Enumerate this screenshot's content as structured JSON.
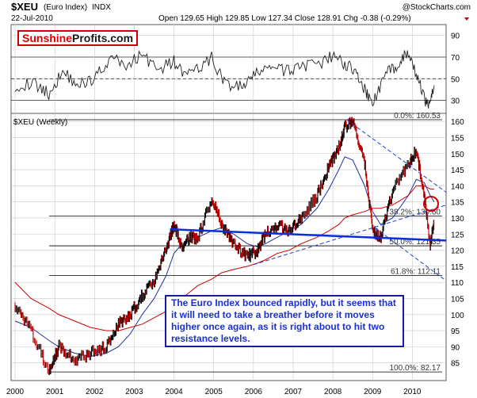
{
  "header": {
    "symbol": "$XEU",
    "name": "(Euro Index)",
    "exchange": "INDX",
    "watermark": "@StockCharts.com",
    "date": "22-Jul-2010",
    "quote": "Open 129.65  High 129.85  Low 127.34  Close 128.91  Chg -0.38 (-0.29%)",
    "chg_marker_color": "#cc0000"
  },
  "brand": {
    "part1": "Sunshine",
    "part2": "Profits.com",
    "color1": "#e00000",
    "color2": "#1a1a1a"
  },
  "indicator_panel": {
    "type": "oscillator",
    "y_ticks": [
      "90",
      "70",
      "50",
      "30"
    ],
    "tick_values": [
      90,
      70,
      50,
      30
    ],
    "ylim": [
      18,
      100
    ],
    "levels": [
      70,
      50,
      30
    ]
  },
  "main_panel": {
    "label": "$XEU (Weekly)",
    "y_ticks": [
      "160",
      "155",
      "150",
      "145",
      "140",
      "135",
      "130",
      "125",
      "120",
      "115",
      "110",
      "105",
      "100",
      "95",
      "90",
      "85"
    ],
    "tick_values": [
      160,
      155,
      150,
      145,
      140,
      135,
      130,
      125,
      120,
      115,
      110,
      105,
      100,
      95,
      90,
      85
    ],
    "ylim": [
      79.5,
      162.5
    ]
  },
  "x_axis": {
    "labels": [
      "2000",
      "2001",
      "2002",
      "2003",
      "2004",
      "2005",
      "2006",
      "2007",
      "2008",
      "2009",
      "2010"
    ],
    "values": [
      2000,
      2001,
      2002,
      2003,
      2004,
      2005,
      2006,
      2007,
      2008,
      2009,
      2010
    ],
    "xlim": [
      1999.9,
      2010.85
    ]
  },
  "fibonacci": [
    {
      "label": "0.0%: 160.53",
      "value": 160.53
    },
    {
      "label": "38.2%: 130.60",
      "value": 130.6
    },
    {
      "label": "50.0%: 121.35",
      "value": 121.35
    },
    {
      "label": "61.8%: 112.11",
      "value": 112.11
    },
    {
      "label": "100.0%: 82.17",
      "value": 82.17
    }
  ],
  "annotation": "The Euro Index bounced rapidly, but it seems that it will need  to take a breather before it moves higher once again, as it is right about to hit two resistance levels.",
  "colors": {
    "price": "#000000",
    "price_down": "#c00000",
    "ma_short": "#1f2fa0",
    "ma_long": "#d00000",
    "trend_lines": "#1f3fd0",
    "support_line": "#0a2fd6",
    "resistance_circle": "#d00000",
    "grid": "#c8c8c8",
    "panel_border": "#5a5a5a"
  },
  "chart_data": {
    "type": "line",
    "title": "$XEU (Euro Index) INDX",
    "xlabel": "",
    "ylabel": "",
    "x": [
      2000.0,
      2000.4,
      2000.85,
      2001.1,
      2001.5,
      2001.9,
      2002.3,
      2002.6,
      2002.9,
      2003.2,
      2003.5,
      2003.8,
      2004.0,
      2004.2,
      2004.4,
      2004.6,
      2004.95,
      2005.2,
      2005.5,
      2005.85,
      2006.1,
      2006.3,
      2006.6,
      2006.9,
      2007.2,
      2007.6,
      2007.9,
      2008.15,
      2008.3,
      2008.5,
      2008.8,
      2009.0,
      2009.2,
      2009.5,
      2009.9,
      2010.1,
      2010.3,
      2010.45,
      2010.55
    ],
    "series": [
      {
        "values": [
          103,
          95,
          82.5,
          90,
          86,
          88,
          90,
          97,
          100,
          106,
          110,
          120,
          128,
          121,
          124,
          124,
          136,
          128,
          122,
          118,
          120,
          125,
          128,
          126,
          130,
          137,
          146,
          152,
          158,
          160,
          147,
          126,
          124,
          138,
          147,
          151,
          137,
          122,
          128.91
        ]
      }
    ],
    "ylim": [
      79.5,
      162.5
    ],
    "xlim": [
      1999.9,
      2010.85
    ],
    "moving_averages": [
      {
        "values": [
          98,
          96,
          92,
          90,
          88,
          87,
          88,
          90,
          94,
          100,
          105,
          112,
          119,
          122,
          123,
          124,
          126,
          127,
          125,
          122,
          121,
          122,
          124,
          126,
          128,
          133,
          139,
          145,
          149,
          148,
          140,
          132,
          128,
          130,
          137,
          142,
          141,
          137,
          135
        ]
      },
      {
        "values": [
          110,
          105,
          102,
          100,
          98,
          96,
          95,
          95,
          96,
          97,
          99,
          101,
          103,
          105,
          107,
          109,
          111,
          113,
          114,
          115,
          116,
          117,
          119,
          120,
          122,
          124,
          126,
          128,
          130,
          131,
          132,
          133,
          133,
          134,
          137,
          140,
          140,
          139,
          139
        ]
      }
    ],
    "oscillator": {
      "x": [
        2000.0,
        2000.5,
        2000.85,
        2001.2,
        2001.6,
        2002.0,
        2002.4,
        2002.8,
        2003.2,
        2003.6,
        2004.0,
        2004.3,
        2004.7,
        2004.95,
        2005.3,
        2005.7,
        2006.0,
        2006.4,
        2006.8,
        2007.2,
        2007.6,
        2008.0,
        2008.3,
        2008.6,
        2008.85,
        2009.0,
        2009.3,
        2009.6,
        2009.85,
        2010.1,
        2010.3,
        2010.45,
        2010.55
      ],
      "values": [
        44,
        45,
        36,
        57,
        44,
        51,
        69,
        62,
        73,
        58,
        66,
        52,
        61,
        69,
        45,
        42,
        52,
        63,
        56,
        63,
        61,
        71,
        64,
        56,
        36,
        27,
        52,
        63,
        73,
        55,
        31,
        27,
        44
      ]
    },
    "trend_lines": [
      {
        "x": [
          2006.0,
          2010.85
        ],
        "y": [
          115.5,
          134
        ]
      },
      {
        "x": [
          2008.35,
          2010.85
        ],
        "y": [
          160.5,
          138
        ]
      },
      {
        "x": [
          2009.05,
          2010.85
        ],
        "y": [
          127,
          110.5
        ]
      }
    ],
    "support_line": {
      "x": [
        2003.9,
        2010.85
      ],
      "y": [
        126.5,
        123
      ]
    }
  }
}
